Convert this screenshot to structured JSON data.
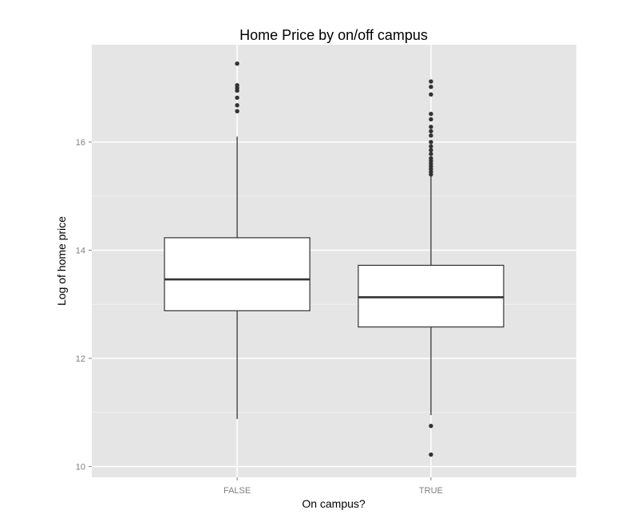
{
  "chart_data": {
    "type": "boxplot",
    "title": "Home Price by on/off campus",
    "xlabel": "On campus?",
    "ylabel": "Log of home price",
    "categories": [
      "FALSE",
      "TRUE"
    ],
    "y_ticks": [
      10,
      12,
      14,
      16
    ],
    "ylim": [
      9.8,
      17.8
    ],
    "grid": true,
    "colors": {
      "panel": "#e5e5e5",
      "grid_major": "#ffffff",
      "grid_minor": "#f2f2f2",
      "box_fill": "#ffffff",
      "box_stroke": "#333333",
      "median": "#333333",
      "outlier": "#333333"
    },
    "boxes": [
      {
        "category": "FALSE",
        "whisker_low": 10.88,
        "q1": 12.88,
        "median": 13.46,
        "q3": 14.23,
        "whisker_high": 16.1,
        "outliers": [
          16.57,
          16.68,
          16.82,
          16.95,
          17.0,
          17.05,
          17.45
        ]
      },
      {
        "category": "TRUE",
        "whisker_low": 10.95,
        "q1": 12.58,
        "median": 13.13,
        "q3": 13.72,
        "whisker_high": 15.37,
        "outliers": [
          10.22,
          10.75,
          15.4,
          15.45,
          15.5,
          15.55,
          15.6,
          15.65,
          15.7,
          15.78,
          15.85,
          15.92,
          16.0,
          16.12,
          16.2,
          16.28,
          16.42,
          16.52,
          16.88,
          17.02,
          17.12
        ]
      }
    ]
  }
}
